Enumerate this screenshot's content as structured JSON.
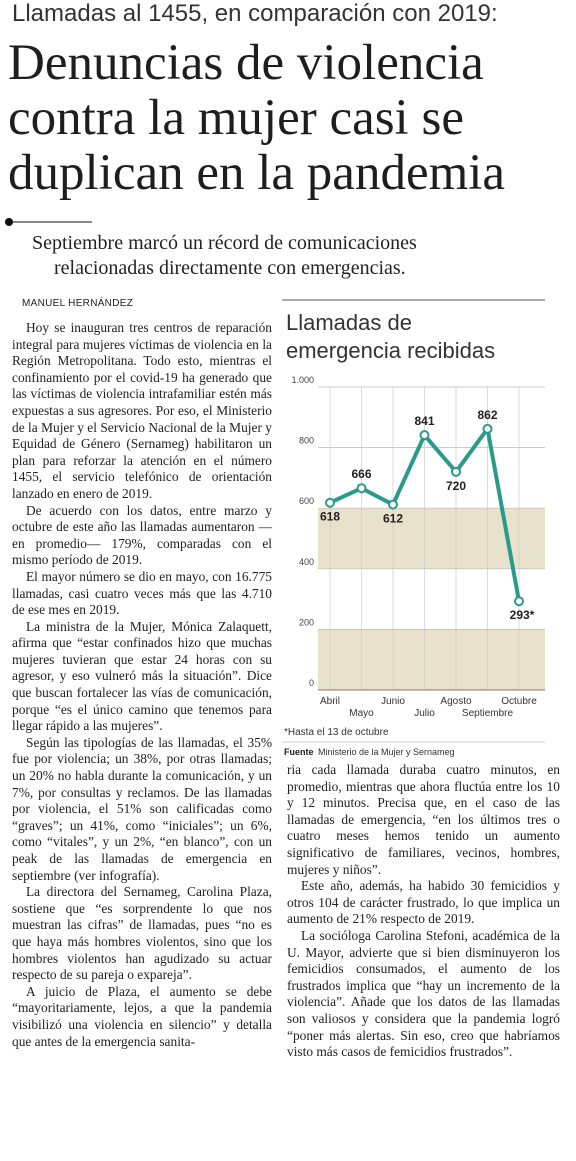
{
  "header": {
    "kicker": "Llamadas al 1455, en comparación con 2019:",
    "title_lines": [
      "Denuncias de violencia",
      "contra la mujer casi se",
      "duplican en la pandemia"
    ],
    "subtitle_lines": [
      "Septiembre marcó un récord de comunicaciones",
      "relacionadas directamente con emergencias."
    ]
  },
  "byline": "MANUEL HERNÁNDEZ",
  "left_column": [
    "Hoy se inauguran tres centros de reparación integral para mujeres víctimas de violencia en la Región Metropolitana. Todo esto, mientras el confinamiento por el covid-19 ha generado que las víctimas de violencia intrafamiliar estén más expuestas a sus agresores. Por eso, el Ministerio de la Mujer y el Servicio Nacional de la Mujer y Equidad de Género (Sernameg) habilitaron un plan para reforzar la atención en el número 1455, el servicio telefónico de orientación lanzado en enero de 2019.",
    "De acuerdo con los datos, entre marzo y octubre de este año las llamadas aumentaron —en promedio— 179%, comparadas con el mismo período de 2019.",
    "El mayor número se dio en mayo, con 16.775 llamadas, casi cuatro veces más que las 4.710 de ese mes en 2019.",
    "La ministra de la Mujer, Mónica Zalaquett, afirma que “estar confinados hizo que muchas mujeres tuvieran que estar 24 horas con su agresor, y eso vulneró más la situación”. Dice que buscan fortalecer las vías de comunicación, porque “es el único camino que tenemos para llegar rápido a las mujeres”.",
    "Según las tipologías de las llamadas, el 35% fue por violencia; un 38%, por otras llamadas; un 20% no habla durante la comunicación, y un 7%, por consultas y reclamos. De las llamadas por violencia, el 51% son calificadas como “graves”; un 41%, como “iniciales”; un 6%, como “vitales”, y un 2%, “en blanco”, con un peak de las llamadas de emergencia en septiembre (ver infografía).",
    "La directora del Sernameg, Carolina Plaza, sostiene que “es sorprendente lo que nos muestran las cifras” de llamadas, pues “no es que haya más hombres violentos, sino que los hombres violentos han agudizado su actuar respecto de su pareja o expareja”.",
    "A juicio de Plaza, el aumento se debe “mayoritariamente, lejos, a que la pandemia visibilizó una violencia en silencio” y detalla que antes de la emergencia sanita-"
  ],
  "right_column": [
    "ria cada llamada duraba cuatro minutos, en promedio, mientras que ahora fluctúa entre los 10 y 12 minutos. Precisa que, en el caso de las llamadas de emergencia, “en los últimos tres o cuatro meses hemos tenido un aumento significativo de familiares, vecinos, hombres, mujeres y niños”.",
    "Este año, además, ha habido 30 femicidios y otros 104 de carácter frustrado, lo que implica un aumento de 21% respecto de 2019.",
    "La socióloga Carolina Stefoni, académica de la U. Mayor, advierte que si bien disminuyeron los femicidios consumados, el aumento de los frustrados implica que “hay un incremento de la violencia”. Añade que los datos de las llamadas son valiosos y considera que la pandemia logró “poner más alertas. Sin eso, creo que habríamos visto más casos de femicidios frustrados”."
  ],
  "chart_data": {
    "type": "line",
    "title": [
      "Llamadas de",
      "emergencia recibidas"
    ],
    "categories": [
      "Abril",
      "Mayo",
      "Junio",
      "Julio",
      "Agosto",
      "Septiembre",
      "Octubre"
    ],
    "values": [
      618,
      666,
      612,
      841,
      720,
      862,
      293
    ],
    "value_labels": [
      "618",
      "666",
      "612",
      "841",
      "720",
      "862",
      "293*"
    ],
    "color": "#2a9a8a",
    "ylim": [
      0,
      1000
    ],
    "yticks": [
      0,
      200,
      400,
      600,
      800,
      {
        "value": 1000,
        "label": "1.000"
      }
    ],
    "footnote": "*Hasta el 13 de octubre",
    "source_label": "Fuente",
    "source": "Ministerio de la Mujer y Sernameg"
  }
}
